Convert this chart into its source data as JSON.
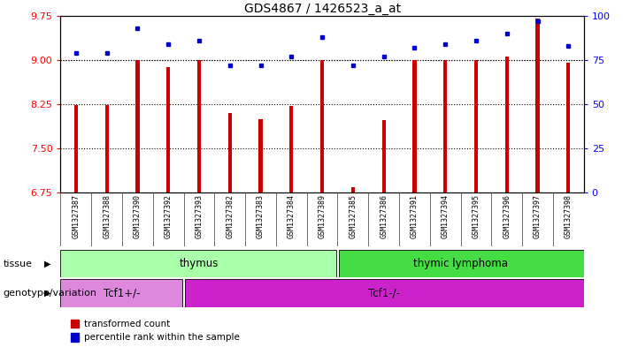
{
  "title": "GDS4867 / 1426523_a_at",
  "samples": [
    "GSM1327387",
    "GSM1327388",
    "GSM1327390",
    "GSM1327392",
    "GSM1327393",
    "GSM1327382",
    "GSM1327383",
    "GSM1327384",
    "GSM1327389",
    "GSM1327385",
    "GSM1327386",
    "GSM1327391",
    "GSM1327394",
    "GSM1327395",
    "GSM1327396",
    "GSM1327397",
    "GSM1327398"
  ],
  "transformed_count": [
    8.24,
    8.24,
    9.0,
    8.88,
    9.0,
    8.1,
    8.0,
    8.22,
    9.0,
    6.84,
    7.98,
    9.0,
    9.0,
    9.0,
    9.05,
    9.7,
    8.95
  ],
  "percentile_rank": [
    79,
    79,
    93,
    84,
    86,
    72,
    72,
    77,
    88,
    72,
    77,
    82,
    84,
    86,
    90,
    97,
    83
  ],
  "ylim_left": [
    6.75,
    9.75
  ],
  "ylim_right": [
    0,
    100
  ],
  "yticks_left": [
    6.75,
    7.5,
    8.25,
    9.0,
    9.75
  ],
  "yticks_right": [
    0,
    25,
    50,
    75,
    100
  ],
  "bar_color": "#cc0000",
  "point_color": "#0000cc",
  "tissue_thymus_count": 9,
  "tissue_lymphoma_count": 8,
  "tissue_thymus_label": "thymus",
  "tissue_lymphoma_label": "thymic lymphoma",
  "tissue_thymus_color": "#aaffaa",
  "tissue_lymphoma_color": "#44dd44",
  "genotype_tcf1plus_count": 4,
  "genotype_tcf1minus_count": 13,
  "genotype_tcf1plus_label": "Tcf1+/-",
  "genotype_tcf1minus_label": "Tcf1-/-",
  "genotype_tcf1plus_color": "#dd88dd",
  "genotype_tcf1minus_color": "#cc22cc",
  "legend_bar_label": "transformed count",
  "legend_point_label": "percentile rank within the sample",
  "tissue_row_label": "tissue",
  "genotype_row_label": "genotype/variation",
  "background_color": "#ffffff",
  "label_bg_color": "#d0d0d0",
  "bar_width": 0.12
}
